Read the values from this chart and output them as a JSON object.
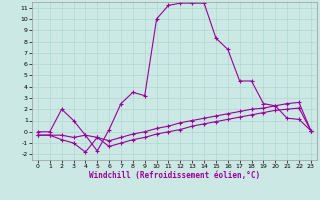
{
  "xlabel": "Windchill (Refroidissement éolien,°C)",
  "bg_color": "#cce8e4",
  "line_color": "#990099",
  "xlim": [
    -0.5,
    23.5
  ],
  "ylim": [
    -2.5,
    11.5
  ],
  "xticks": [
    0,
    1,
    2,
    3,
    4,
    5,
    6,
    7,
    8,
    9,
    10,
    11,
    12,
    13,
    14,
    15,
    16,
    17,
    18,
    19,
    20,
    21,
    22,
    23
  ],
  "yticks": [
    -2,
    -1,
    0,
    1,
    2,
    3,
    4,
    5,
    6,
    7,
    8,
    9,
    10,
    11
  ],
  "line1_x": [
    0,
    1,
    2,
    3,
    4,
    5,
    6,
    7,
    8,
    9,
    10,
    11,
    12,
    13,
    14,
    15,
    16,
    17,
    18,
    19,
    20,
    21,
    22,
    23
  ],
  "line1_y": [
    0,
    0,
    2,
    1,
    -0.3,
    -1.7,
    0.2,
    2.5,
    3.5,
    3.2,
    10,
    11.2,
    11.4,
    11.4,
    11.4,
    8.3,
    7.3,
    4.5,
    4.5,
    2.5,
    2.3,
    1.2,
    1.1,
    0.1
  ],
  "line2_x": [
    0,
    1,
    2,
    3,
    4,
    5,
    6,
    7,
    8,
    9,
    10,
    11,
    12,
    13,
    14,
    15,
    16,
    17,
    18,
    19,
    20,
    21,
    22,
    23
  ],
  "line2_y": [
    -0.3,
    -0.3,
    -0.3,
    -0.5,
    -0.3,
    -0.5,
    -0.8,
    -0.5,
    -0.2,
    0.0,
    0.3,
    0.5,
    0.8,
    1.0,
    1.2,
    1.4,
    1.6,
    1.8,
    2.0,
    2.1,
    2.3,
    2.5,
    2.6,
    0.1
  ],
  "line3_x": [
    0,
    1,
    2,
    3,
    4,
    5,
    6,
    7,
    8,
    9,
    10,
    11,
    12,
    13,
    14,
    15,
    16,
    17,
    18,
    19,
    20,
    21,
    22,
    23
  ],
  "line3_y": [
    -0.3,
    -0.3,
    -0.7,
    -1.0,
    -1.8,
    -0.5,
    -1.3,
    -1.0,
    -0.7,
    -0.5,
    -0.2,
    0.0,
    0.2,
    0.5,
    0.7,
    0.9,
    1.1,
    1.3,
    1.5,
    1.7,
    1.9,
    2.0,
    2.1,
    0.1
  ]
}
